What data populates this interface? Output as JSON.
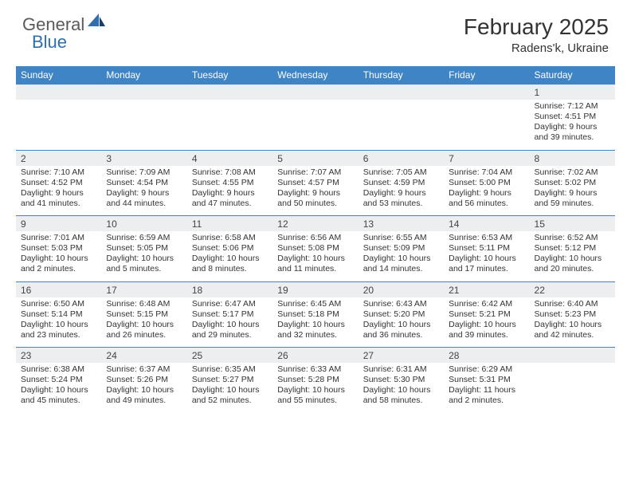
{
  "brand": {
    "part1": "General",
    "part2": "Blue"
  },
  "title": "February 2025",
  "location": "Radens'k, Ukraine",
  "colors": {
    "header_bg": "#3f85c6",
    "daynum_bg": "#eceeef",
    "text": "#333333",
    "brand_blue": "#2f6fb0",
    "brand_grey": "#5a5a5a"
  },
  "day_headers": [
    "Sunday",
    "Monday",
    "Tuesday",
    "Wednesday",
    "Thursday",
    "Friday",
    "Saturday"
  ],
  "weeks": [
    [
      null,
      null,
      null,
      null,
      null,
      null,
      {
        "n": "1",
        "sr": "7:12 AM",
        "ss": "4:51 PM",
        "dl": "9 hours and 39 minutes."
      }
    ],
    [
      {
        "n": "2",
        "sr": "7:10 AM",
        "ss": "4:52 PM",
        "dl": "9 hours and 41 minutes."
      },
      {
        "n": "3",
        "sr": "7:09 AM",
        "ss": "4:54 PM",
        "dl": "9 hours and 44 minutes."
      },
      {
        "n": "4",
        "sr": "7:08 AM",
        "ss": "4:55 PM",
        "dl": "9 hours and 47 minutes."
      },
      {
        "n": "5",
        "sr": "7:07 AM",
        "ss": "4:57 PM",
        "dl": "9 hours and 50 minutes."
      },
      {
        "n": "6",
        "sr": "7:05 AM",
        "ss": "4:59 PM",
        "dl": "9 hours and 53 minutes."
      },
      {
        "n": "7",
        "sr": "7:04 AM",
        "ss": "5:00 PM",
        "dl": "9 hours and 56 minutes."
      },
      {
        "n": "8",
        "sr": "7:02 AM",
        "ss": "5:02 PM",
        "dl": "9 hours and 59 minutes."
      }
    ],
    [
      {
        "n": "9",
        "sr": "7:01 AM",
        "ss": "5:03 PM",
        "dl": "10 hours and 2 minutes."
      },
      {
        "n": "10",
        "sr": "6:59 AM",
        "ss": "5:05 PM",
        "dl": "10 hours and 5 minutes."
      },
      {
        "n": "11",
        "sr": "6:58 AM",
        "ss": "5:06 PM",
        "dl": "10 hours and 8 minutes."
      },
      {
        "n": "12",
        "sr": "6:56 AM",
        "ss": "5:08 PM",
        "dl": "10 hours and 11 minutes."
      },
      {
        "n": "13",
        "sr": "6:55 AM",
        "ss": "5:09 PM",
        "dl": "10 hours and 14 minutes."
      },
      {
        "n": "14",
        "sr": "6:53 AM",
        "ss": "5:11 PM",
        "dl": "10 hours and 17 minutes."
      },
      {
        "n": "15",
        "sr": "6:52 AM",
        "ss": "5:12 PM",
        "dl": "10 hours and 20 minutes."
      }
    ],
    [
      {
        "n": "16",
        "sr": "6:50 AM",
        "ss": "5:14 PM",
        "dl": "10 hours and 23 minutes."
      },
      {
        "n": "17",
        "sr": "6:48 AM",
        "ss": "5:15 PM",
        "dl": "10 hours and 26 minutes."
      },
      {
        "n": "18",
        "sr": "6:47 AM",
        "ss": "5:17 PM",
        "dl": "10 hours and 29 minutes."
      },
      {
        "n": "19",
        "sr": "6:45 AM",
        "ss": "5:18 PM",
        "dl": "10 hours and 32 minutes."
      },
      {
        "n": "20",
        "sr": "6:43 AM",
        "ss": "5:20 PM",
        "dl": "10 hours and 36 minutes."
      },
      {
        "n": "21",
        "sr": "6:42 AM",
        "ss": "5:21 PM",
        "dl": "10 hours and 39 minutes."
      },
      {
        "n": "22",
        "sr": "6:40 AM",
        "ss": "5:23 PM",
        "dl": "10 hours and 42 minutes."
      }
    ],
    [
      {
        "n": "23",
        "sr": "6:38 AM",
        "ss": "5:24 PM",
        "dl": "10 hours and 45 minutes."
      },
      {
        "n": "24",
        "sr": "6:37 AM",
        "ss": "5:26 PM",
        "dl": "10 hours and 49 minutes."
      },
      {
        "n": "25",
        "sr": "6:35 AM",
        "ss": "5:27 PM",
        "dl": "10 hours and 52 minutes."
      },
      {
        "n": "26",
        "sr": "6:33 AM",
        "ss": "5:28 PM",
        "dl": "10 hours and 55 minutes."
      },
      {
        "n": "27",
        "sr": "6:31 AM",
        "ss": "5:30 PM",
        "dl": "10 hours and 58 minutes."
      },
      {
        "n": "28",
        "sr": "6:29 AM",
        "ss": "5:31 PM",
        "dl": "11 hours and 2 minutes."
      },
      null
    ]
  ],
  "labels": {
    "sunrise": "Sunrise:",
    "sunset": "Sunset:",
    "daylight": "Daylight:"
  }
}
